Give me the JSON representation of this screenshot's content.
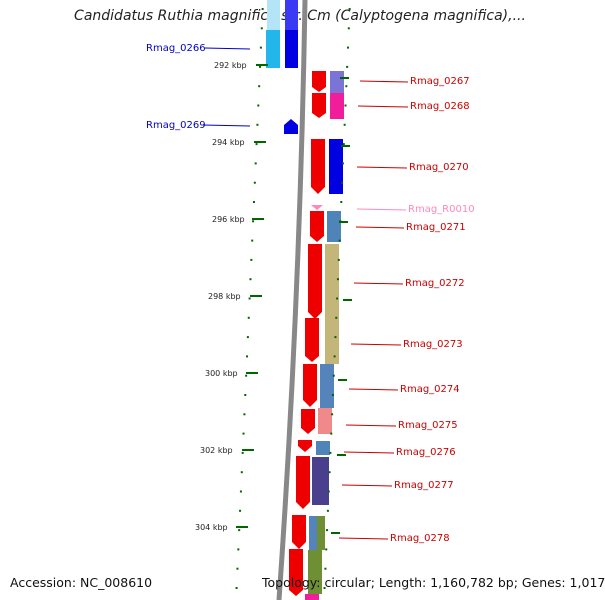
{
  "title": "Candidatus Ruthia magnifica str. Cm (Calyptogena magnifica),...",
  "footer": {
    "accession": "Accession: NC_008610",
    "topology": "Topology: circular; Length: 1,160,782 bp; Genes: 1,017"
  },
  "colors": {
    "left_label": "#0000cc",
    "right_label": "#cc0000",
    "rna_label": "#ff88bb",
    "tick": "#006600",
    "axis": "#888888"
  },
  "kbp_ticks": [
    "292 kbp",
    "294 kbp",
    "296 kbp",
    "298 kbp",
    "300 kbp",
    "302 kbp",
    "304 kbp"
  ],
  "left_genes": [
    "Rmag_0266",
    "Rmag_0269"
  ],
  "right_genes": [
    "Rmag_0267",
    "Rmag_0268",
    "Rmag_0270",
    "Rmag_R0010",
    "Rmag_0271",
    "Rmag_0272",
    "Rmag_0273",
    "Rmag_0274",
    "Rmag_0275",
    "Rmag_0276",
    "Rmag_0277",
    "Rmag_0278"
  ]
}
